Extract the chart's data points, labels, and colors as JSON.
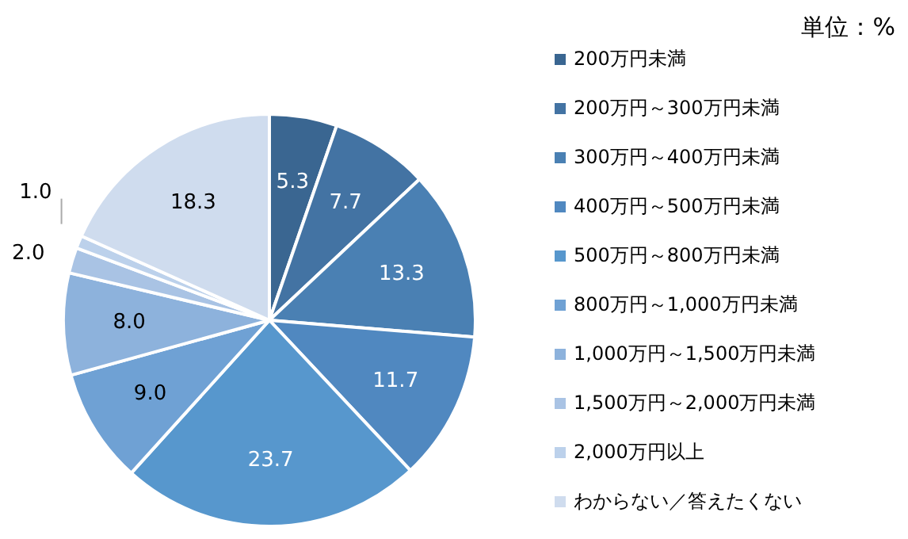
{
  "chart_data": {
    "type": "pie",
    "annotations": [
      "単位：%"
    ],
    "categories": [
      "200万円未満",
      "200万円～300万円未満",
      "300万円～400万円未満",
      "400万円～500万円未満",
      "500万円～800万円未満",
      "800万円～1,000万円未満",
      "1,000万円～1,500万円未満",
      "1,500万円～2,000万円未満",
      "2,000万円以上",
      "わからない／答えたくない"
    ],
    "values": [
      5.3,
      7.7,
      13.3,
      11.7,
      23.7,
      9.0,
      8.0,
      2.0,
      1.0,
      18.3
    ],
    "value_labels": [
      "5.3",
      "7.7",
      "13.3",
      "11.7",
      "23.7",
      "9.0",
      "8.0",
      "2.0",
      "1.0",
      "18.3"
    ],
    "colors": [
      "#3a6691",
      "#4373a3",
      "#4a80b3",
      "#5088c0",
      "#5797cd",
      "#6fa1d4",
      "#8db2dc",
      "#a9c3e4",
      "#bcd1eb",
      "#cfdcee"
    ],
    "legend": "right"
  }
}
